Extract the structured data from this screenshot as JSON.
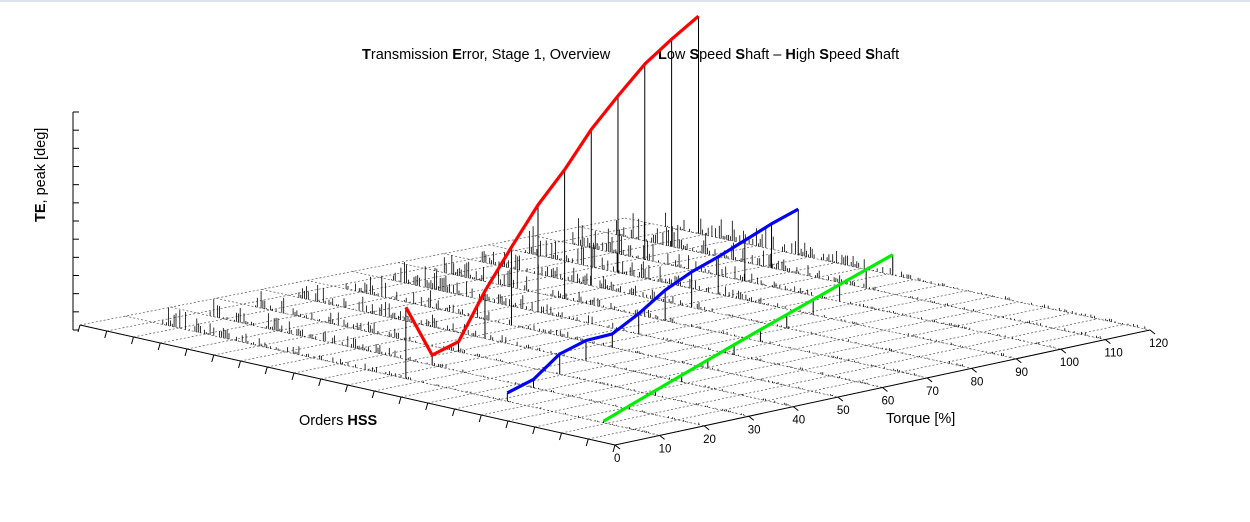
{
  "title": {
    "left": [
      {
        "t": "T",
        "b": true
      },
      {
        "t": "ransmission ",
        "b": false
      },
      {
        "t": "E",
        "b": true
      },
      {
        "t": "rror, Stage 1, Overview",
        "b": false
      }
    ],
    "right": [
      {
        "t": "L",
        "b": true
      },
      {
        "t": "ow ",
        "b": false
      },
      {
        "t": "S",
        "b": true
      },
      {
        "t": "peed ",
        "b": false
      },
      {
        "t": "S",
        "b": true
      },
      {
        "t": "haft – ",
        "b": false
      },
      {
        "t": "H",
        "b": true
      },
      {
        "t": "igh ",
        "b": false
      },
      {
        "t": "S",
        "b": true
      },
      {
        "t": "peed ",
        "b": false
      },
      {
        "t": "S",
        "b": true
      },
      {
        "t": "haft",
        "b": false
      }
    ]
  },
  "axes": {
    "ylabel": [
      {
        "t": "TE",
        "b": true
      },
      {
        "t": ", peak [deg]",
        "b": false
      }
    ],
    "xlabel": [
      {
        "t": "Orders ",
        "b": false
      },
      {
        "t": "HSS",
        "b": true
      }
    ],
    "zlabel": [
      {
        "t": "Torque [%]",
        "b": false
      }
    ]
  },
  "chart_data": {
    "type": "3d-waterfall",
    "torque_ticks": [
      "0",
      "10",
      "20",
      "30",
      "40",
      "50",
      "60",
      "70",
      "80",
      "90",
      "100",
      "110",
      "120"
    ],
    "torque_range": [
      0,
      120
    ],
    "y_tick_count": 12,
    "x_tick_count": 20,
    "grid": true,
    "series": [
      {
        "color": "#ff0000",
        "role": "mesh-order",
        "torque": [
          10,
          20,
          30,
          40,
          50,
          60,
          70,
          80,
          90,
          100,
          110,
          120
        ],
        "te": [
          0.42,
          0.06,
          0.06,
          0.28,
          0.46,
          0.63,
          0.76,
          0.92,
          1.04,
          1.15,
          1.22,
          1.28
        ]
      },
      {
        "color": "#0000ff",
        "role": "mid-order",
        "torque": [
          10,
          20,
          30,
          40,
          50,
          60,
          70,
          80,
          90,
          100,
          110,
          120
        ],
        "te": [
          0.05,
          0.05,
          0.12,
          0.12,
          0.08,
          0.12,
          0.18,
          0.21,
          0.22,
          0.24,
          0.26,
          0.27
        ]
      },
      {
        "color": "#00ee00",
        "role": "high-order",
        "torque": [
          10,
          20,
          30,
          40,
          50,
          60,
          70,
          80,
          90,
          100,
          110,
          120
        ],
        "te": [
          0.01,
          0.02,
          0.03,
          0.04,
          0.05,
          0.06,
          0.07,
          0.08,
          0.09,
          0.1,
          0.11,
          0.12
        ]
      }
    ]
  }
}
